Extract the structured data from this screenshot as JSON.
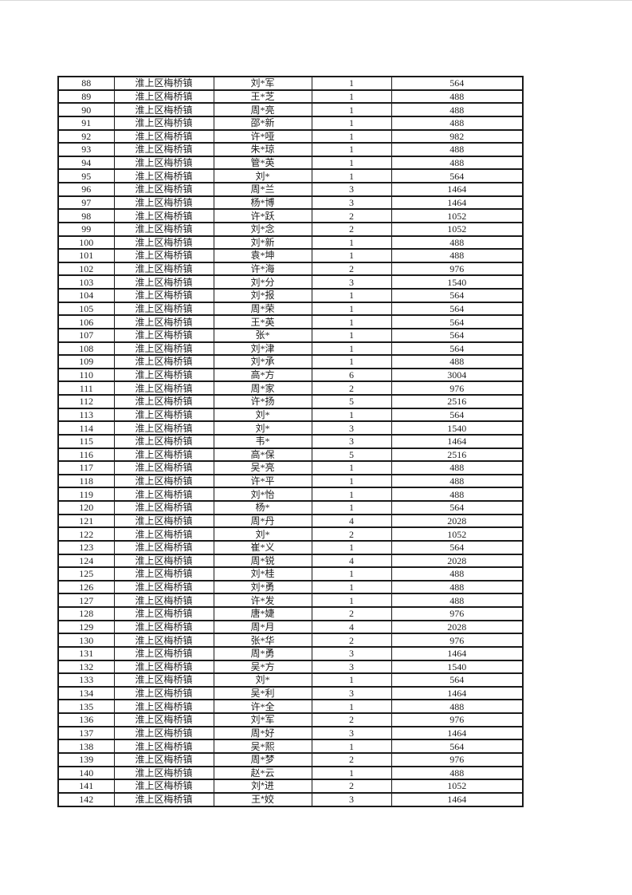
{
  "page": {
    "background": "#ffffff",
    "top_edge_color": "#d9d9d9"
  },
  "table": {
    "border_color": "#1a1a1a",
    "text_color": "#1e1e1e",
    "town": "淮上区梅桥镇",
    "column_keys": [
      "serial",
      "town",
      "name",
      "count",
      "amount"
    ],
    "alt_font_serials": [
      141,
      142
    ],
    "rows": [
      [
        88,
        "淮上区梅桥镇",
        "刘*军",
        1,
        564
      ],
      [
        89,
        "淮上区梅桥镇",
        "王*芝",
        1,
        488
      ],
      [
        90,
        "淮上区梅桥镇",
        "周*亮",
        1,
        488
      ],
      [
        91,
        "淮上区梅桥镇",
        "邵*新",
        1,
        488
      ],
      [
        92,
        "淮上区梅桥镇",
        "许*哑",
        1,
        982
      ],
      [
        93,
        "淮上区梅桥镇",
        "朱*琼",
        1,
        488
      ],
      [
        94,
        "淮上区梅桥镇",
        "管*英",
        1,
        488
      ],
      [
        95,
        "淮上区梅桥镇",
        "刘*",
        1,
        564
      ],
      [
        96,
        "淮上区梅桥镇",
        "周*兰",
        3,
        1464
      ],
      [
        97,
        "淮上区梅桥镇",
        "杨*博",
        3,
        1464
      ],
      [
        98,
        "淮上区梅桥镇",
        "许*跃",
        2,
        1052
      ],
      [
        99,
        "淮上区梅桥镇",
        "刘*念",
        2,
        1052
      ],
      [
        100,
        "淮上区梅桥镇",
        "刘*新",
        1,
        488
      ],
      [
        101,
        "淮上区梅桥镇",
        "袁*坤",
        1,
        488
      ],
      [
        102,
        "淮上区梅桥镇",
        "许*海",
        2,
        976
      ],
      [
        103,
        "淮上区梅桥镇",
        "刘*分",
        3,
        1540
      ],
      [
        104,
        "淮上区梅桥镇",
        "刘*报",
        1,
        564
      ],
      [
        105,
        "淮上区梅桥镇",
        "周*荣",
        1,
        564
      ],
      [
        106,
        "淮上区梅桥镇",
        "王*英",
        1,
        564
      ],
      [
        107,
        "淮上区梅桥镇",
        "张*",
        1,
        564
      ],
      [
        108,
        "淮上区梅桥镇",
        "刘*津",
        1,
        564
      ],
      [
        109,
        "淮上区梅桥镇",
        "刘*承",
        1,
        488
      ],
      [
        110,
        "淮上区梅桥镇",
        "高*方",
        6,
        3004
      ],
      [
        111,
        "淮上区梅桥镇",
        "周*家",
        2,
        976
      ],
      [
        112,
        "淮上区梅桥镇",
        "许*扬",
        5,
        2516
      ],
      [
        113,
        "淮上区梅桥镇",
        "刘*",
        1,
        564
      ],
      [
        114,
        "淮上区梅桥镇",
        "刘*",
        3,
        1540
      ],
      [
        115,
        "淮上区梅桥镇",
        "韦*",
        3,
        1464
      ],
      [
        116,
        "淮上区梅桥镇",
        "高*保",
        5,
        2516
      ],
      [
        117,
        "淮上区梅桥镇",
        "吴*亮",
        1,
        488
      ],
      [
        118,
        "淮上区梅桥镇",
        "许*平",
        1,
        488
      ],
      [
        119,
        "淮上区梅桥镇",
        "刘*怡",
        1,
        488
      ],
      [
        120,
        "淮上区梅桥镇",
        "杨*",
        1,
        564
      ],
      [
        121,
        "淮上区梅桥镇",
        "周*丹",
        4,
        2028
      ],
      [
        122,
        "淮上区梅桥镇",
        "刘*",
        2,
        1052
      ],
      [
        123,
        "淮上区梅桥镇",
        "崔*义",
        1,
        564
      ],
      [
        124,
        "淮上区梅桥镇",
        "周*锐",
        4,
        2028
      ],
      [
        125,
        "淮上区梅桥镇",
        "刘*桂",
        1,
        488
      ],
      [
        126,
        "淮上区梅桥镇",
        "刘*勇",
        1,
        488
      ],
      [
        127,
        "淮上区梅桥镇",
        "许*发",
        1,
        488
      ],
      [
        128,
        "淮上区梅桥镇",
        "唐*婕",
        2,
        976
      ],
      [
        129,
        "淮上区梅桥镇",
        "周*月",
        4,
        2028
      ],
      [
        130,
        "淮上区梅桥镇",
        "张*华",
        2,
        976
      ],
      [
        131,
        "淮上区梅桥镇",
        "周*勇",
        3,
        1464
      ],
      [
        132,
        "淮上区梅桥镇",
        "吴*方",
        3,
        1540
      ],
      [
        133,
        "淮上区梅桥镇",
        "刘*",
        1,
        564
      ],
      [
        134,
        "淮上区梅桥镇",
        "吴*利",
        3,
        1464
      ],
      [
        135,
        "淮上区梅桥镇",
        "许*全",
        1,
        488
      ],
      [
        136,
        "淮上区梅桥镇",
        "刘*军",
        2,
        976
      ],
      [
        137,
        "淮上区梅桥镇",
        "周*好",
        3,
        1464
      ],
      [
        138,
        "淮上区梅桥镇",
        "吴*熙",
        1,
        564
      ],
      [
        139,
        "淮上区梅桥镇",
        "周*梦",
        2,
        976
      ],
      [
        140,
        "淮上区梅桥镇",
        "赵*云",
        1,
        488
      ],
      [
        141,
        "淮上区梅桥镇",
        "刘*进",
        2,
        1052
      ],
      [
        142,
        "淮上区梅桥镇",
        "王*姣",
        3,
        1464
      ]
    ]
  }
}
